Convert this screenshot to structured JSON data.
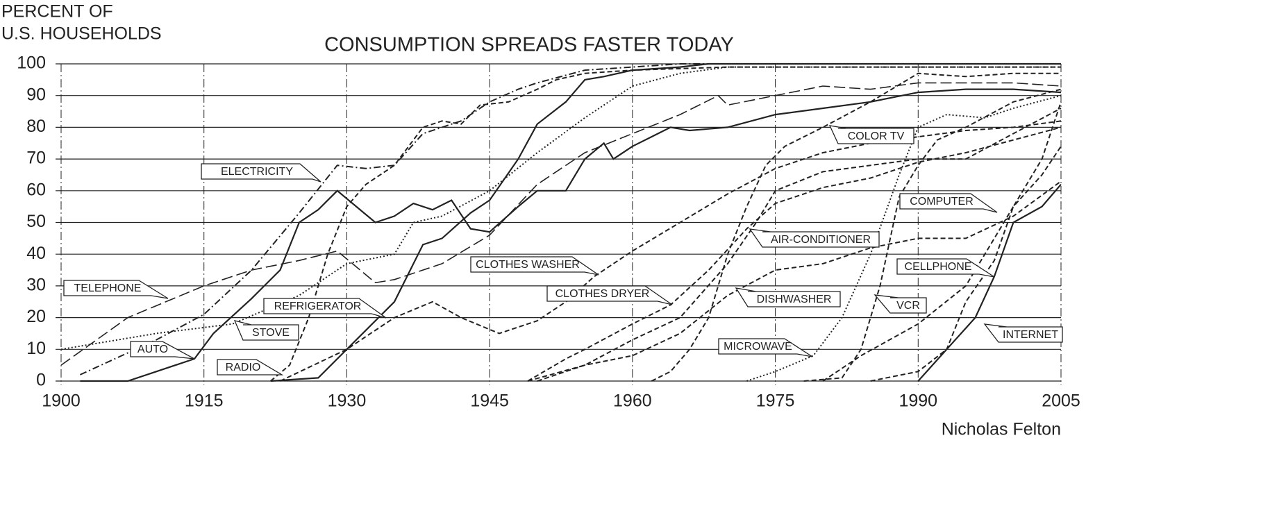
{
  "chart_data": {
    "type": "line",
    "title": "CONSUMPTION SPREADS FASTER TODAY",
    "ylabel": [
      "PERCENT OF",
      "U.S. HOUSEHOLDS"
    ],
    "credit": "Nicholas Felton",
    "xlim": [
      1900,
      2005
    ],
    "xticks": [
      1900,
      1915,
      1930,
      1945,
      1960,
      1975,
      1990,
      2005
    ],
    "ylim": [
      0,
      100
    ],
    "yticks": [
      0,
      10,
      20,
      30,
      40,
      50,
      60,
      70,
      80,
      90,
      100
    ],
    "grid": true,
    "series": [
      {
        "name": "ELECTRICITY",
        "color": "#222222",
        "style": "dashdot",
        "x": [
          1902,
          1910,
          1915,
          1920,
          1925,
          1929,
          1932,
          1935,
          1938,
          1940,
          1942,
          1945,
          1948,
          1950,
          1955,
          1960,
          1965,
          2005
        ],
        "values": [
          2,
          13,
          21,
          35,
          53,
          68,
          67,
          68,
          78,
          80,
          82,
          88,
          92,
          94,
          98,
          99,
          100,
          100
        ]
      },
      {
        "name": "TELEPHONE",
        "color": "#222222",
        "style": "longdash",
        "x": [
          1900,
          1907,
          1915,
          1920,
          1925,
          1929,
          1933,
          1935,
          1940,
          1945,
          1950,
          1955,
          1960,
          1965,
          1969,
          1970,
          1975,
          1980,
          1985,
          1990,
          1995,
          2000,
          2005
        ],
        "values": [
          5,
          20,
          30,
          35,
          38,
          41,
          31,
          32,
          37,
          46,
          62,
          72,
          78,
          84,
          90,
          87,
          90,
          93,
          92,
          94,
          94,
          94,
          93
        ]
      },
      {
        "name": "AUTO",
        "color": "#222222",
        "style": "solid",
        "x": [
          1902,
          1907,
          1910,
          1914,
          1916,
          1920,
          1923,
          1925,
          1927,
          1929,
          1931,
          1933,
          1935,
          1937,
          1939,
          1941,
          1943,
          1945,
          1948,
          1950,
          1953,
          1955,
          1957,
          1958,
          1960,
          1962,
          1964,
          1966,
          1970,
          1975,
          1980,
          1985,
          1990,
          1995,
          2000,
          2005
        ],
        "values": [
          0,
          0,
          3,
          7,
          15,
          26,
          35,
          50,
          54,
          60,
          55,
          50,
          52,
          56,
          54,
          57,
          48,
          47,
          55,
          60,
          60,
          70,
          75,
          70,
          74,
          77,
          80,
          79,
          80,
          84,
          86,
          88,
          91,
          92,
          92,
          91
        ]
      },
      {
        "name": "STOVE",
        "color": "#222222",
        "style": "dotted",
        "x": [
          1900,
          1910,
          1918,
          1925,
          1930,
          1935,
          1937,
          1940,
          1945,
          1950,
          1955,
          1960,
          1965,
          1970,
          2005
        ],
        "values": [
          10,
          15,
          18,
          27,
          37,
          40,
          50,
          52,
          60,
          72,
          83,
          93,
          97,
          99,
          99
        ]
      },
      {
        "name": "REFRIGERATOR",
        "color": "#222222",
        "style": "solid",
        "x": [
          1922,
          1927,
          1930,
          1935,
          1938,
          1940,
          1943,
          1945,
          1948,
          1950,
          1953,
          1955,
          1957,
          1960,
          1965,
          1968,
          2005
        ],
        "values": [
          0,
          1,
          10,
          25,
          43,
          45,
          53,
          57,
          70,
          81,
          88,
          95,
          96,
          98,
          99,
          100,
          100
        ]
      },
      {
        "name": "RADIO",
        "color": "#222222",
        "style": "dashed",
        "x": [
          1922,
          1924,
          1926,
          1928,
          1930,
          1932,
          1935,
          1938,
          1940,
          1942,
          1944,
          1947,
          1950,
          1952,
          1955,
          1960,
          1970,
          2005
        ],
        "values": [
          0,
          5,
          20,
          40,
          55,
          62,
          68,
          80,
          82,
          81,
          87,
          88,
          92,
          95,
          97,
          98,
          99,
          99
        ]
      },
      {
        "name": "CLOTHES WASHER",
        "color": "#222222",
        "style": "dashed",
        "x": [
          1923,
          1930,
          1935,
          1939,
          1942,
          1946,
          1950,
          1953,
          1956,
          1960,
          1965,
          1970,
          1975,
          1980,
          1985,
          1990,
          1995,
          2000,
          2005
        ],
        "values": [
          0,
          10,
          20,
          25,
          20,
          15,
          19,
          25,
          33,
          41,
          50,
          59,
          67,
          72,
          75,
          77,
          79,
          80,
          82
        ]
      },
      {
        "name": "CLOTHES DRYER",
        "color": "#222222",
        "style": "dashed",
        "x": [
          1949,
          1953,
          1955,
          1960,
          1964,
          1968,
          1972,
          1975,
          1980,
          1985,
          1990,
          1995,
          2000,
          2005
        ],
        "values": [
          0,
          7,
          10,
          18,
          24,
          35,
          48,
          56,
          61,
          64,
          69,
          72,
          76,
          80
        ]
      },
      {
        "name": "AIR-CONDITIONER",
        "color": "#222222",
        "style": "dashed",
        "x": [
          1949,
          1955,
          1960,
          1965,
          1970,
          1973,
          1975,
          1980,
          1985,
          1990,
          1995,
          2000,
          2005
        ],
        "values": [
          0,
          5,
          13,
          20,
          37,
          50,
          60,
          66,
          68,
          70,
          70,
          78,
          86
        ]
      },
      {
        "name": "COLOR TV",
        "color": "#222222",
        "style": "dashed",
        "x": [
          1962,
          1964,
          1966,
          1968,
          1970,
          1972,
          1974,
          1976,
          1978,
          1980,
          1985,
          1990,
          1995,
          2000,
          2005
        ],
        "values": [
          0,
          3,
          10,
          20,
          40,
          55,
          68,
          74,
          77,
          80,
          88,
          97,
          96,
          97,
          97
        ]
      },
      {
        "name": "DISHWASHER",
        "color": "#222222",
        "style": "dashed",
        "x": [
          1950,
          1955,
          1960,
          1965,
          1970,
          1975,
          1980,
          1985,
          1990,
          1995,
          2000,
          2005
        ],
        "values": [
          0,
          5,
          8,
          15,
          27,
          35,
          37,
          42,
          45,
          45,
          52,
          63
        ]
      },
      {
        "name": "MICROWAVE",
        "color": "#222222",
        "style": "dotted",
        "x": [
          1972,
          1975,
          1979,
          1982,
          1985,
          1988,
          1990,
          1993,
          1997,
          2000,
          2005
        ],
        "values": [
          0,
          3,
          8,
          20,
          40,
          65,
          80,
          84,
          83,
          86,
          90
        ]
      },
      {
        "name": "VCR",
        "color": "#222222",
        "style": "dashed",
        "x": [
          1978,
          1982,
          1984,
          1986,
          1988,
          1990,
          1992,
          1995,
          2000,
          2005
        ],
        "values": [
          0,
          1,
          10,
          30,
          58,
          68,
          76,
          80,
          88,
          92
        ]
      },
      {
        "name": "COMPUTER",
        "color": "#222222",
        "style": "dashed",
        "x": [
          1980,
          1984,
          1990,
          1995,
          1998,
          2000,
          2003,
          2005
        ],
        "values": [
          0,
          8,
          18,
          30,
          45,
          55,
          65,
          74
        ]
      },
      {
        "name": "CELLPHONE",
        "color": "#222222",
        "style": "dashed",
        "x": [
          1985,
          1990,
          1993,
          1995,
          1998,
          2000,
          2003,
          2005
        ],
        "values": [
          0,
          3,
          10,
          25,
          38,
          55,
          70,
          88
        ]
      },
      {
        "name": "INTERNET",
        "color": "#222222",
        "style": "solid",
        "x": [
          1990,
          1993,
          1996,
          1998,
          2000,
          2003,
          2005
        ],
        "values": [
          0,
          10,
          20,
          33,
          50,
          55,
          62
        ]
      }
    ]
  }
}
